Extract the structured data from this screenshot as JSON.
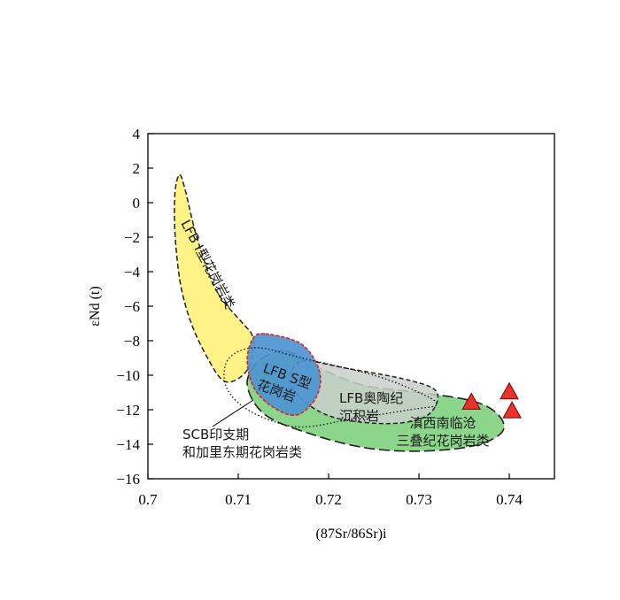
{
  "chart_data": {
    "type": "scatter",
    "title": "",
    "xlabel": "(87Sr/86Sr)i",
    "ylabel": "εNd (t)",
    "xlim": [
      0.7,
      0.745
    ],
    "ylim": [
      -16,
      4
    ],
    "x_ticks": [
      "0.7",
      "0.71",
      "0.72",
      "0.73",
      "0.74"
    ],
    "y_ticks": [
      "4",
      "2",
      "0",
      "−2",
      "−4",
      "−6",
      "−8",
      "−10",
      "−12",
      "−14",
      "−16"
    ],
    "grid": false,
    "fields": [
      {
        "name": "LFB I型花岗岩类",
        "label_lines": [
          "LFB I型花岗岩类"
        ],
        "color": "#fff27a",
        "points": [
          [
            0.7035,
            1.6
          ],
          [
            0.7041,
            0.8
          ],
          [
            0.7052,
            -1.6
          ],
          [
            0.7068,
            -4.2
          ],
          [
            0.7082,
            -5.6
          ],
          [
            0.7105,
            -7.0
          ],
          [
            0.7116,
            -7.8
          ],
          [
            0.7114,
            -9.3
          ],
          [
            0.71,
            -10.2
          ],
          [
            0.7083,
            -10.3
          ],
          [
            0.7066,
            -9.0
          ],
          [
            0.7048,
            -7.0
          ],
          [
            0.7036,
            -4.7
          ],
          [
            0.703,
            -1.8
          ],
          [
            0.703,
            0.6
          ]
        ]
      },
      {
        "name": "滇西南临沧三叠纪花岗岩类",
        "label_lines": [
          "滇西南临沧",
          "三叠纪花岗岩类"
        ],
        "color": "#7fd17f",
        "points": [
          [
            0.7152,
            -8.6
          ],
          [
            0.719,
            -9.6
          ],
          [
            0.724,
            -10.6
          ],
          [
            0.73,
            -11.0
          ],
          [
            0.736,
            -11.5
          ],
          [
            0.7388,
            -12.3
          ],
          [
            0.7392,
            -13.3
          ],
          [
            0.736,
            -14.1
          ],
          [
            0.73,
            -14.4
          ],
          [
            0.724,
            -14.2
          ],
          [
            0.718,
            -13.4
          ],
          [
            0.713,
            -12.3
          ],
          [
            0.711,
            -10.6
          ],
          [
            0.7122,
            -9.2
          ]
        ]
      },
      {
        "name": "LFB奥陶纪沉积岩",
        "label_lines": [
          "LFB奥陶纪",
          "沉积岩"
        ],
        "color": "#c9cfca",
        "points": [
          [
            0.717,
            -9.2
          ],
          [
            0.722,
            -9.6
          ],
          [
            0.729,
            -10.3
          ],
          [
            0.732,
            -11.0
          ],
          [
            0.731,
            -12.3
          ],
          [
            0.727,
            -12.8
          ],
          [
            0.721,
            -12.5
          ],
          [
            0.7175,
            -11.6
          ],
          [
            0.7158,
            -10.4
          ]
        ]
      },
      {
        "name": "LFB S型花岗岩",
        "label_lines": [
          "LFB S型",
          "花岗岩"
        ],
        "color": "#4d94d1",
        "points": [
          [
            0.713,
            -7.6
          ],
          [
            0.717,
            -8.2
          ],
          [
            0.719,
            -9.8
          ],
          [
            0.7186,
            -11.3
          ],
          [
            0.7165,
            -12.3
          ],
          [
            0.714,
            -11.9
          ],
          [
            0.7118,
            -10.8
          ],
          [
            0.711,
            -9.2
          ],
          [
            0.7116,
            -7.9
          ]
        ]
      },
      {
        "name": "SCB印支期和加里东期花岗岩类",
        "label_lines": [
          "SCB印支期",
          "和加里东期花岗岩类"
        ],
        "color": "none",
        "points": [
          [
            0.7085,
            -10.4
          ],
          [
            0.709,
            -9.0
          ],
          [
            0.712,
            -8.4
          ],
          [
            0.717,
            -9.0
          ],
          [
            0.725,
            -10.0
          ],
          [
            0.73,
            -11.0
          ],
          [
            0.732,
            -11.7
          ],
          [
            0.729,
            -12.0
          ],
          [
            0.723,
            -12.5
          ],
          [
            0.717,
            -13.0
          ],
          [
            0.713,
            -12.5
          ],
          [
            0.71,
            -11.6
          ]
        ]
      }
    ],
    "series": [
      {
        "marker": "triangle",
        "color": "#e8322c",
        "x": [
          0.7358,
          0.74,
          0.7403
        ],
        "y": [
          -11.6,
          -11.0,
          -12.1
        ]
      }
    ]
  }
}
